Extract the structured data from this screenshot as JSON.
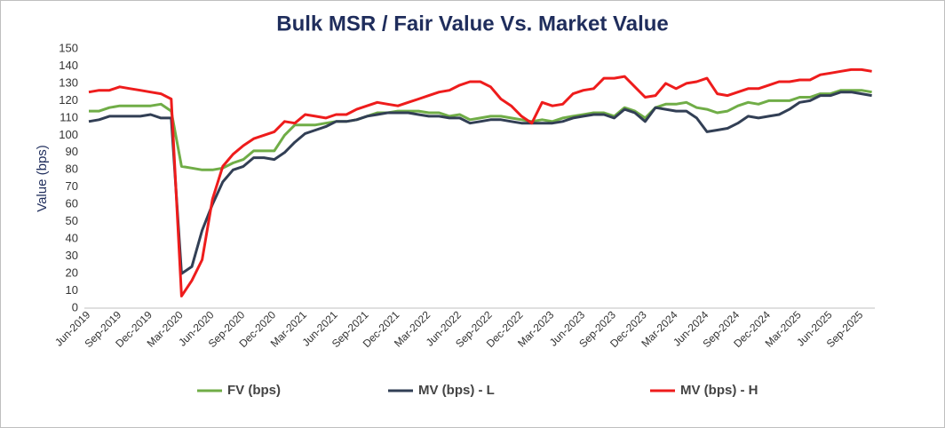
{
  "chart_data": {
    "type": "line",
    "title": "Bulk MSR / Fair Value Vs. Market Value",
    "y_label": "Value (bps)",
    "categories": [
      "Jun-2019",
      null,
      null,
      "Sep-2019",
      null,
      null,
      "Dec-2019",
      null,
      null,
      "Mar-2020",
      null,
      null,
      "Jun-2020",
      null,
      null,
      "Sep-2020",
      null,
      null,
      "Dec-2020",
      null,
      null,
      "Mar-2021",
      null,
      null,
      "Jun-2021",
      null,
      null,
      "Sep-2021",
      null,
      null,
      "Dec-2021",
      null,
      null,
      "Mar-2022",
      null,
      null,
      "Jun-2022",
      null,
      null,
      "Sep-2022",
      null,
      null,
      "Dec-2022",
      null,
      null,
      "Mar-2023",
      null,
      null,
      "Jun-2023",
      null,
      null,
      "Sep-2023",
      null,
      null,
      "Dec-2023",
      null,
      null,
      "Mar-2024",
      null,
      null,
      "Jun-2024",
      null,
      null,
      "Sep-2024",
      null,
      null,
      "Dec-2024",
      null,
      null,
      "Mar-2025",
      null,
      null,
      "Jun-2025",
      null,
      null,
      "Sep-2025",
      null
    ],
    "series": [
      {
        "name": "FV (bps)",
        "color": "#70ad47",
        "values": [
          114,
          114,
          116,
          117,
          117,
          117,
          117,
          118,
          114,
          82,
          81,
          80,
          80,
          81,
          84,
          86,
          91,
          91,
          91,
          100,
          106,
          106,
          106,
          107,
          108,
          108,
          109,
          111,
          113,
          113,
          114,
          114,
          114,
          113,
          113,
          111,
          112,
          109,
          110,
          111,
          111,
          110,
          109,
          108,
          109,
          108,
          110,
          111,
          112,
          113,
          113,
          111,
          116,
          114,
          110,
          116,
          118,
          118,
          119,
          116,
          115,
          113,
          114,
          117,
          119,
          118,
          120,
          120,
          120,
          122,
          122,
          124,
          124,
          126,
          126,
          126,
          125
        ]
      },
      {
        "name": "MV (bps) - L",
        "color": "#323f55",
        "values": [
          108,
          109,
          111,
          111,
          111,
          111,
          112,
          110,
          110,
          20,
          24,
          45,
          60,
          73,
          80,
          82,
          87,
          87,
          86,
          90,
          96,
          101,
          103,
          105,
          108,
          108,
          109,
          111,
          112,
          113,
          113,
          113,
          112,
          111,
          111,
          110,
          110,
          107,
          108,
          109,
          109,
          108,
          107,
          107,
          107,
          107,
          108,
          110,
          111,
          112,
          112,
          110,
          115,
          113,
          108,
          116,
          115,
          114,
          114,
          110,
          102,
          103,
          104,
          107,
          111,
          110,
          111,
          112,
          115,
          119,
          120,
          123,
          123,
          125,
          125,
          124,
          123
        ]
      },
      {
        "name": "MV (bps) - H",
        "color": "#ee1c1c",
        "values": [
          125,
          126,
          126,
          128,
          127,
          126,
          125,
          124,
          121,
          7,
          16,
          28,
          63,
          82,
          89,
          94,
          98,
          100,
          102,
          108,
          107,
          112,
          111,
          110,
          112,
          112,
          115,
          117,
          119,
          118,
          117,
          119,
          121,
          123,
          125,
          126,
          129,
          131,
          131,
          128,
          121,
          117,
          111,
          107,
          119,
          117,
          118,
          124,
          126,
          127,
          133,
          133,
          134,
          128,
          122,
          123,
          130,
          127,
          130,
          131,
          133,
          124,
          123,
          125,
          127,
          127,
          129,
          131,
          131,
          132,
          132,
          135,
          136,
          137,
          138,
          138,
          137
        ]
      }
    ],
    "ylim": [
      0,
      150
    ],
    "yticks": [
      0,
      10,
      20,
      30,
      40,
      50,
      60,
      70,
      80,
      90,
      100,
      110,
      120,
      130,
      140,
      150
    ],
    "grid": false
  }
}
